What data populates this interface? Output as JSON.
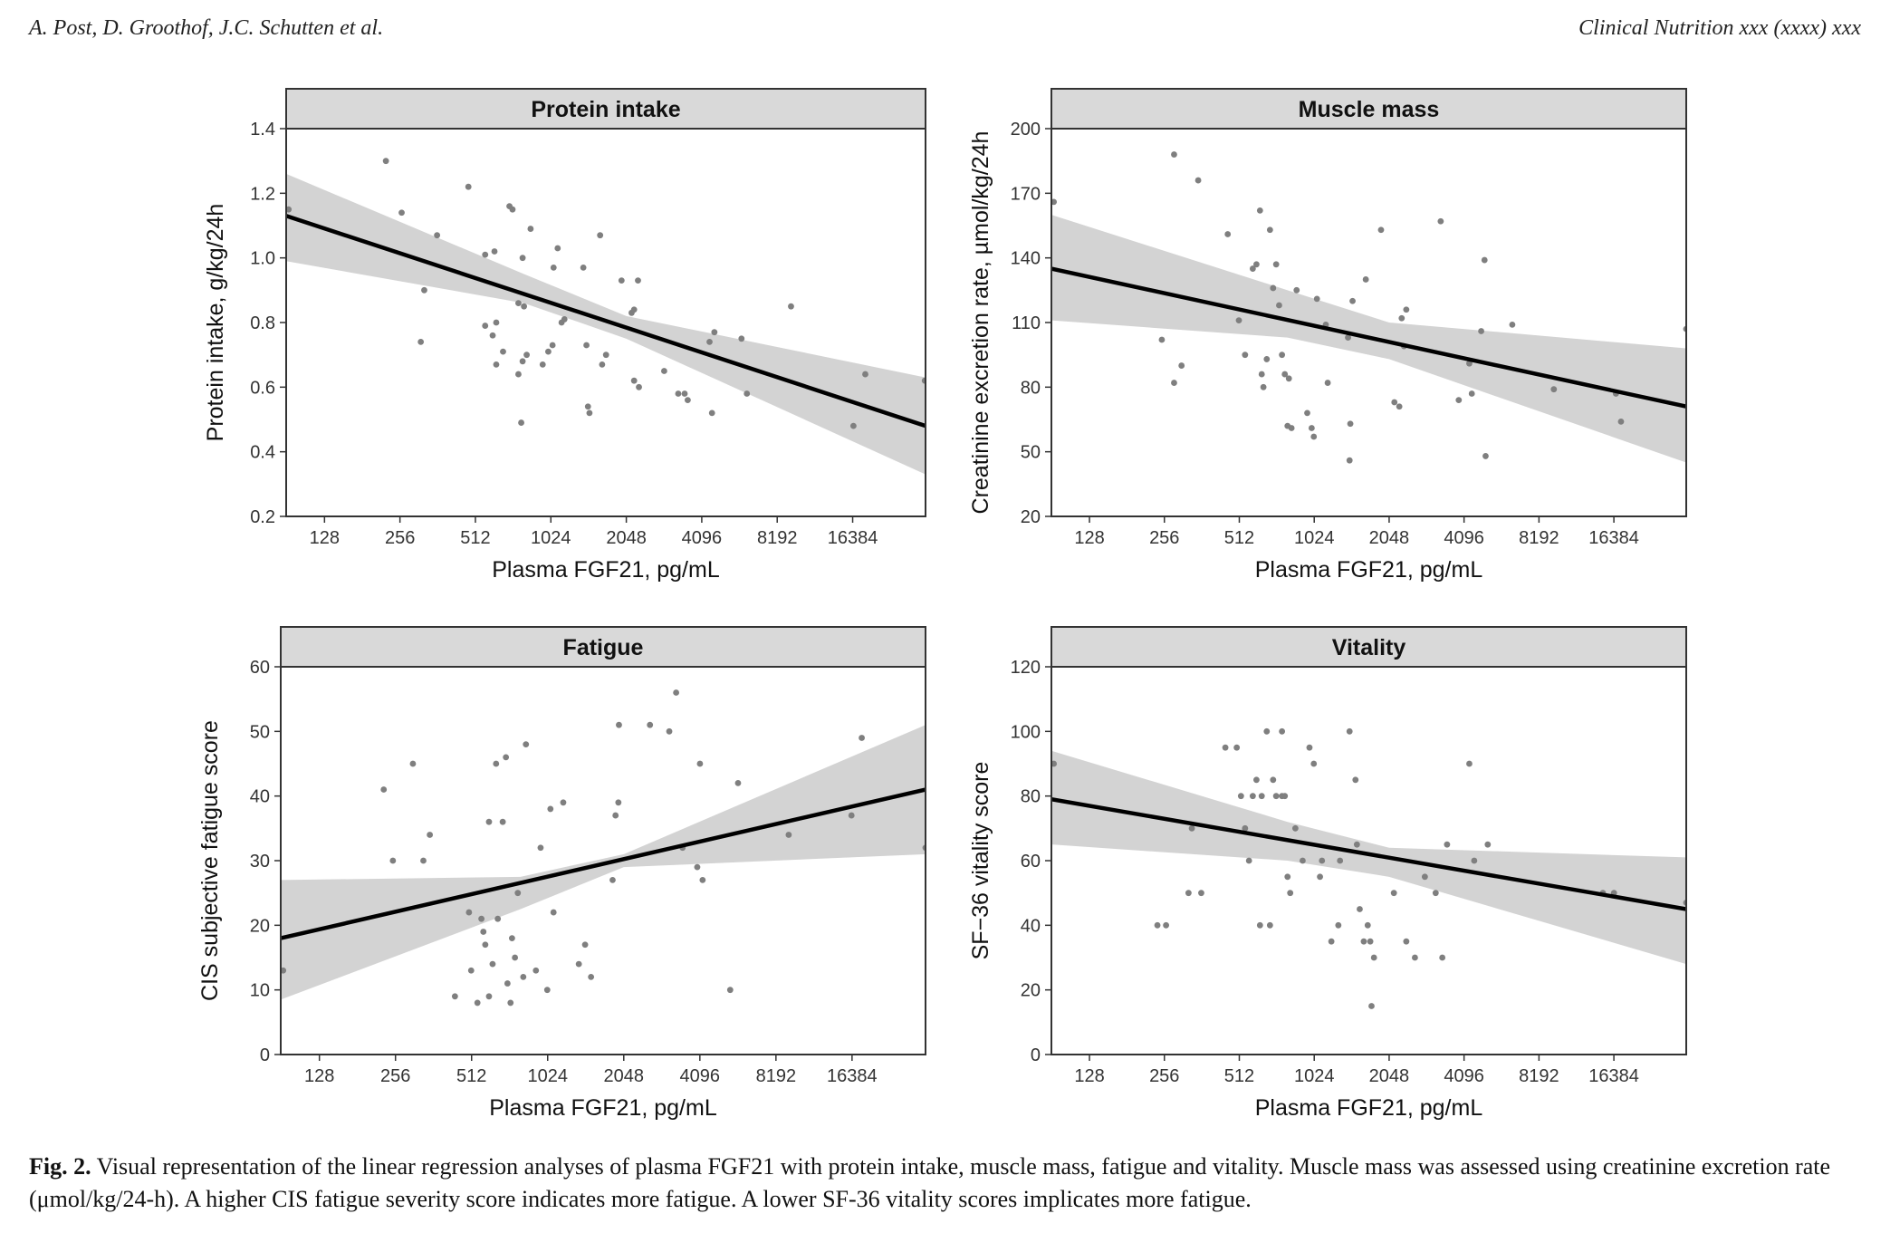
{
  "header": {
    "authors": "A. Post, D. Groothof, J.C. Schutten et al.",
    "journal": "Clinical Nutrition xxx (xxxx) xxx"
  },
  "caption": {
    "label": "Fig. 2.",
    "text": "Visual representation of the linear regression analyses of plasma FGF21 with protein intake, muscle mass, fatigue and vitality. Muscle mass was assessed using creatinine excretion rate (μmol/kg/24-h). A higher CIS fatigue severity score indicates more fatigue. A lower SF-36 vitality scores implicates more fatigue."
  },
  "colors": {
    "points": "#7f7f7f",
    "line": "#000000",
    "band": "#d3d3d3",
    "strip": "#d9d9d9"
  },
  "chart_data": [
    {
      "type": "scatter",
      "title": "Protein intake",
      "xlabel": "Plasma FGF21, pg/mL",
      "ylabel": "Protein intake, g/kg/24h",
      "x_scale": "log2",
      "xlim": [
        90,
        32000
      ],
      "ylim": [
        0.2,
        1.4
      ],
      "xticks": [
        128,
        256,
        512,
        1024,
        2048,
        4096,
        8192,
        16384
      ],
      "yticks": [
        0.2,
        0.4,
        0.6,
        0.8,
        1.0,
        1.2,
        1.4
      ],
      "ytick_labels": [
        "0.2",
        "0.4",
        "0.6",
        "0.8",
        "1.0",
        "1.2",
        "1.4"
      ],
      "fit": {
        "x": [
          90,
          32000
        ],
        "y": [
          1.13,
          0.48
        ]
      },
      "ci_upper": [
        [
          90,
          1.26
        ],
        [
          800,
          0.95
        ],
        [
          2048,
          0.82
        ],
        [
          32000,
          0.63
        ]
      ],
      "ci_lower": [
        [
          90,
          0.99
        ],
        [
          800,
          0.86
        ],
        [
          2048,
          0.75
        ],
        [
          32000,
          0.33
        ]
      ],
      "points": [
        [
          92,
          1.15
        ],
        [
          225,
          1.3
        ],
        [
          260,
          1.14
        ],
        [
          320,
          0.9
        ],
        [
          310,
          0.74
        ],
        [
          360,
          1.07
        ],
        [
          480,
          1.22
        ],
        [
          560,
          1.01
        ],
        [
          610,
          1.02
        ],
        [
          560,
          0.79
        ],
        [
          600,
          0.76
        ],
        [
          620,
          0.8
        ],
        [
          620,
          0.67
        ],
        [
          660,
          0.71
        ],
        [
          700,
          1.16
        ],
        [
          720,
          1.15
        ],
        [
          760,
          0.86
        ],
        [
          790,
          1.0
        ],
        [
          800,
          0.85
        ],
        [
          760,
          0.64
        ],
        [
          780,
          0.49
        ],
        [
          790,
          0.68
        ],
        [
          820,
          0.7
        ],
        [
          850,
          1.09
        ],
        [
          950,
          0.67
        ],
        [
          1000,
          0.71
        ],
        [
          1040,
          0.73
        ],
        [
          1050,
          0.97
        ],
        [
          1090,
          1.03
        ],
        [
          1130,
          0.8
        ],
        [
          1160,
          0.81
        ],
        [
          1380,
          0.97
        ],
        [
          1440,
          0.54
        ],
        [
          1460,
          0.52
        ],
        [
          1420,
          0.73
        ],
        [
          1610,
          1.07
        ],
        [
          1640,
          0.67
        ],
        [
          1700,
          0.7
        ],
        [
          1960,
          0.93
        ],
        [
          2150,
          0.83
        ],
        [
          2200,
          0.84
        ],
        [
          2280,
          0.93
        ],
        [
          2200,
          0.62
        ],
        [
          2300,
          0.6
        ],
        [
          2900,
          0.65
        ],
        [
          3300,
          0.58
        ],
        [
          3500,
          0.58
        ],
        [
          3600,
          0.56
        ],
        [
          4400,
          0.74
        ],
        [
          4600,
          0.77
        ],
        [
          4500,
          0.52
        ],
        [
          5900,
          0.75
        ],
        [
          6200,
          0.58
        ],
        [
          9300,
          0.85
        ],
        [
          16500,
          0.48
        ],
        [
          18400,
          0.64
        ],
        [
          31800,
          0.62
        ]
      ]
    },
    {
      "type": "scatter",
      "title": "Muscle mass",
      "xlabel": "Plasma FGF21, pg/mL",
      "ylabel": "Creatinine excretion rate, µmol/kg/24h",
      "x_scale": "log2",
      "xlim": [
        90,
        32000
      ],
      "ylim": [
        20,
        200
      ],
      "xticks": [
        128,
        256,
        512,
        1024,
        2048,
        4096,
        8192,
        16384
      ],
      "yticks": [
        20,
        50,
        80,
        110,
        140,
        170,
        200
      ],
      "ytick_labels": [
        "20",
        "50",
        "80",
        "110",
        "140",
        "170",
        "200"
      ],
      "fit": {
        "x": [
          90,
          32000
        ],
        "y": [
          135,
          71
        ]
      },
      "ci_upper": [
        [
          90,
          160
        ],
        [
          800,
          125
        ],
        [
          2048,
          110
        ],
        [
          32000,
          98
        ]
      ],
      "ci_lower": [
        [
          90,
          111
        ],
        [
          800,
          103
        ],
        [
          2048,
          93
        ],
        [
          32000,
          45
        ]
      ],
      "points": [
        [
          92,
          166
        ],
        [
          280,
          188
        ],
        [
          250,
          102
        ],
        [
          280,
          82
        ],
        [
          300,
          90
        ],
        [
          350,
          176
        ],
        [
          460,
          151
        ],
        [
          510,
          111
        ],
        [
          540,
          95
        ],
        [
          580,
          135
        ],
        [
          600,
          137
        ],
        [
          620,
          162
        ],
        [
          630,
          86
        ],
        [
          640,
          80
        ],
        [
          660,
          93
        ],
        [
          680,
          153
        ],
        [
          700,
          126
        ],
        [
          720,
          137
        ],
        [
          740,
          118
        ],
        [
          760,
          95
        ],
        [
          780,
          86
        ],
        [
          800,
          62
        ],
        [
          810,
          84
        ],
        [
          830,
          61
        ],
        [
          870,
          125
        ],
        [
          960,
          68
        ],
        [
          1000,
          61
        ],
        [
          1020,
          57
        ],
        [
          1050,
          121
        ],
        [
          1140,
          109
        ],
        [
          1160,
          82
        ],
        [
          1400,
          103
        ],
        [
          1420,
          46
        ],
        [
          1430,
          63
        ],
        [
          1460,
          120
        ],
        [
          1650,
          130
        ],
        [
          1900,
          153
        ],
        [
          2150,
          73
        ],
        [
          2250,
          71
        ],
        [
          2300,
          112
        ],
        [
          2350,
          99
        ],
        [
          2400,
          116
        ],
        [
          3300,
          157
        ],
        [
          3900,
          74
        ],
        [
          4300,
          91
        ],
        [
          4400,
          77
        ],
        [
          4800,
          106
        ],
        [
          4950,
          139
        ],
        [
          5000,
          48
        ],
        [
          6400,
          109
        ],
        [
          9400,
          79
        ],
        [
          16700,
          77
        ],
        [
          17500,
          64
        ],
        [
          32000,
          107
        ]
      ]
    },
    {
      "type": "scatter",
      "title": "Fatigue",
      "xlabel": "Plasma FGF21, pg/mL",
      "ylabel": "CIS subjective fatigue score",
      "x_scale": "log2",
      "xlim": [
        90,
        32000
      ],
      "ylim": [
        0,
        60
      ],
      "xticks": [
        128,
        256,
        512,
        1024,
        2048,
        4096,
        8192,
        16384
      ],
      "yticks": [
        0,
        10,
        20,
        30,
        40,
        50,
        60
      ],
      "ytick_labels": [
        "0",
        "10",
        "20",
        "30",
        "40",
        "50",
        "60"
      ],
      "fit": {
        "x": [
          90,
          32000
        ],
        "y": [
          18,
          41
        ]
      },
      "ci_upper": [
        [
          90,
          27
        ],
        [
          800,
          27.5
        ],
        [
          2048,
          31
        ],
        [
          32000,
          51
        ]
      ],
      "ci_lower": [
        [
          90,
          8.5
        ],
        [
          800,
          22.5
        ],
        [
          2048,
          29
        ],
        [
          32000,
          31
        ]
      ],
      "points": [
        [
          92,
          13
        ],
        [
          230,
          41
        ],
        [
          250,
          30
        ],
        [
          300,
          45
        ],
        [
          330,
          30
        ],
        [
          350,
          34
        ],
        [
          440,
          9
        ],
        [
          500,
          22
        ],
        [
          510,
          13
        ],
        [
          540,
          8
        ],
        [
          560,
          21
        ],
        [
          570,
          19
        ],
        [
          580,
          17
        ],
        [
          600,
          9
        ],
        [
          600,
          36
        ],
        [
          620,
          14
        ],
        [
          640,
          45
        ],
        [
          650,
          21
        ],
        [
          680,
          36
        ],
        [
          700,
          46
        ],
        [
          710,
          11
        ],
        [
          730,
          8
        ],
        [
          740,
          18
        ],
        [
          760,
          15
        ],
        [
          780,
          25
        ],
        [
          820,
          12
        ],
        [
          840,
          48
        ],
        [
          920,
          13
        ],
        [
          960,
          32
        ],
        [
          1020,
          10
        ],
        [
          1050,
          38
        ],
        [
          1080,
          22
        ],
        [
          1180,
          39
        ],
        [
          1360,
          14
        ],
        [
          1440,
          17
        ],
        [
          1520,
          12
        ],
        [
          1850,
          27
        ],
        [
          1900,
          37
        ],
        [
          1950,
          39
        ],
        [
          1960,
          51
        ],
        [
          2600,
          51
        ],
        [
          3100,
          50
        ],
        [
          3300,
          56
        ],
        [
          3500,
          32
        ],
        [
          4000,
          29
        ],
        [
          4100,
          45
        ],
        [
          4200,
          27
        ],
        [
          5400,
          10
        ],
        [
          5800,
          42
        ],
        [
          9200,
          34
        ],
        [
          16300,
          37
        ],
        [
          17900,
          49
        ],
        [
          32000,
          32
        ]
      ]
    },
    {
      "type": "scatter",
      "title": "Vitality",
      "xlabel": "Plasma FGF21, pg/mL",
      "ylabel": "SF−36 vitality score",
      "x_scale": "log2",
      "xlim": [
        90,
        32000
      ],
      "ylim": [
        0,
        120
      ],
      "xticks": [
        128,
        256,
        512,
        1024,
        2048,
        4096,
        8192,
        16384
      ],
      "yticks": [
        0,
        20,
        40,
        60,
        80,
        100,
        120
      ],
      "ytick_labels": [
        "0",
        "20",
        "40",
        "60",
        "80",
        "100",
        "120"
      ],
      "fit": {
        "x": [
          90,
          32000
        ],
        "y": [
          79,
          45
        ]
      },
      "ci_upper": [
        [
          90,
          94
        ],
        [
          800,
          72
        ],
        [
          2048,
          64
        ],
        [
          32000,
          61
        ]
      ],
      "ci_lower": [
        [
          90,
          65
        ],
        [
          800,
          60
        ],
        [
          2048,
          55
        ],
        [
          32000,
          28
        ]
      ],
      "points": [
        [
          92,
          90
        ],
        [
          240,
          40
        ],
        [
          260,
          40
        ],
        [
          320,
          50
        ],
        [
          330,
          70
        ],
        [
          360,
          50
        ],
        [
          450,
          95
        ],
        [
          500,
          95
        ],
        [
          520,
          80
        ],
        [
          540,
          70
        ],
        [
          560,
          60
        ],
        [
          580,
          80
        ],
        [
          600,
          85
        ],
        [
          620,
          40
        ],
        [
          630,
          80
        ],
        [
          660,
          100
        ],
        [
          680,
          40
        ],
        [
          700,
          85
        ],
        [
          720,
          80
        ],
        [
          760,
          100
        ],
        [
          760,
          80
        ],
        [
          780,
          80
        ],
        [
          800,
          55
        ],
        [
          820,
          50
        ],
        [
          860,
          70
        ],
        [
          920,
          60
        ],
        [
          980,
          95
        ],
        [
          1020,
          90
        ],
        [
          1080,
          55
        ],
        [
          1100,
          60
        ],
        [
          1200,
          35
        ],
        [
          1280,
          40
        ],
        [
          1300,
          60
        ],
        [
          1420,
          100
        ],
        [
          1500,
          85
        ],
        [
          1520,
          65
        ],
        [
          1560,
          45
        ],
        [
          1620,
          35
        ],
        [
          1680,
          40
        ],
        [
          1720,
          35
        ],
        [
          1740,
          15
        ],
        [
          1780,
          30
        ],
        [
          2140,
          50
        ],
        [
          2400,
          35
        ],
        [
          2600,
          30
        ],
        [
          2850,
          55
        ],
        [
          3150,
          50
        ],
        [
          3350,
          30
        ],
        [
          3500,
          65
        ],
        [
          4300,
          90
        ],
        [
          4500,
          60
        ],
        [
          5100,
          65
        ],
        [
          14800,
          50
        ],
        [
          16400,
          50
        ],
        [
          32000,
          47
        ]
      ]
    }
  ]
}
